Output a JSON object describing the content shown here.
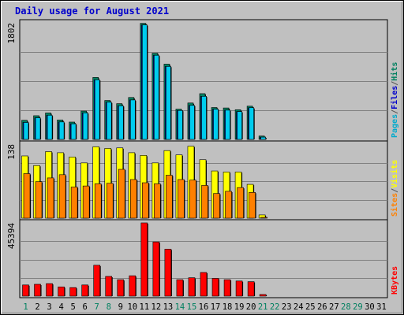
{
  "chart_data": {
    "type": "bar",
    "title": "Daily usage for August 2021",
    "days": [
      "1",
      "2",
      "3",
      "4",
      "5",
      "6",
      "7",
      "8",
      "9",
      "10",
      "11",
      "12",
      "13",
      "14",
      "15",
      "16",
      "17",
      "18",
      "19",
      "20",
      "21",
      "22",
      "23",
      "24",
      "25",
      "26",
      "27",
      "28",
      "29",
      "30",
      "31"
    ],
    "weekend_days": [
      "1",
      "7",
      "8",
      "14",
      "15",
      "21",
      "22",
      "28",
      "29"
    ],
    "panels": [
      {
        "id": "hits",
        "max_label": "1802",
        "max": 1802,
        "side_labels": [
          {
            "text": "Pages",
            "color": "#00aacc"
          },
          {
            "text": "/",
            "color": "#555555"
          },
          {
            "text": "Files",
            "color": "#0000cc"
          },
          {
            "text": "/",
            "color": "#555555"
          },
          {
            "text": "Hits",
            "color": "#008060"
          }
        ],
        "series": [
          {
            "name": "Hits",
            "color": "#008060",
            "values": [
              296,
              366,
              409,
              301,
              268,
              438,
              958,
              602,
              553,
              648,
              1794,
              1332,
              1164,
              468,
              563,
              707,
              493,
              486,
              459,
              514,
              52,
              null,
              null,
              null,
              null,
              null,
              null,
              null,
              null,
              null,
              null
            ]
          },
          {
            "name": "Files",
            "color": "#0000cc",
            "values": [
              262,
              334,
              374,
              270,
              241,
              410,
              922,
              575,
              520,
              610,
              1770,
              1300,
              1128,
              447,
              526,
              666,
              467,
              452,
              430,
              490,
              35,
              null,
              null,
              null,
              null,
              null,
              null,
              null,
              null,
              null,
              null
            ]
          },
          {
            "name": "Pages",
            "color": "#00ccee",
            "values": [
              262,
              334,
              374,
              270,
              241,
              410,
              922,
              575,
              520,
              610,
              1770,
              1300,
              1128,
              447,
              526,
              666,
              467,
              452,
              430,
              490,
              35,
              null,
              null,
              null,
              null,
              null,
              null,
              null,
              null,
              null,
              null
            ]
          }
        ]
      },
      {
        "id": "visits",
        "max_label": "138",
        "max": 138,
        "side_labels": [
          {
            "text": "Sites",
            "color": "#ff8000"
          },
          {
            "text": "/",
            "color": "#555555"
          },
          {
            "text": "Visits",
            "color": "#ffff00"
          }
        ],
        "series": [
          {
            "name": "Visits",
            "color": "#ffff00",
            "values": [
              116,
              98,
              124,
              122,
              114,
              103,
              133,
              130,
              131,
              122,
              117,
              103,
              126,
              118,
              134,
              109,
              88,
              86,
              86,
              63,
              6,
              null,
              null,
              null,
              null,
              null,
              null,
              null,
              null,
              null,
              null
            ]
          },
          {
            "name": "Sites",
            "color": "#ff8000",
            "values": [
              83,
              68,
              75,
              81,
              58,
              60,
              64,
              65,
              91,
              72,
              66,
              64,
              80,
              72,
              71,
              61,
              46,
              50,
              57,
              48,
              0,
              null,
              null,
              null,
              null,
              null,
              null,
              null,
              null,
              null,
              null
            ]
          }
        ]
      },
      {
        "id": "kbytes",
        "max_label": "45394",
        "max": 45394,
        "side_labels": [
          {
            "text": "KBytes",
            "color": "#ff0000"
          }
        ],
        "series": [
          {
            "name": "KBytes",
            "color": "#ff0000",
            "values": [
              6919,
              7330,
              7738,
              5705,
              5300,
              6919,
              19131,
              12214,
              10180,
              12622,
              45394,
              33585,
              29107,
              10180,
              11399,
              14657,
              10990,
              10180,
              9365,
              8958,
              1007,
              null,
              null,
              null,
              null,
              null,
              null,
              null,
              null,
              null,
              null
            ]
          }
        ]
      }
    ]
  }
}
